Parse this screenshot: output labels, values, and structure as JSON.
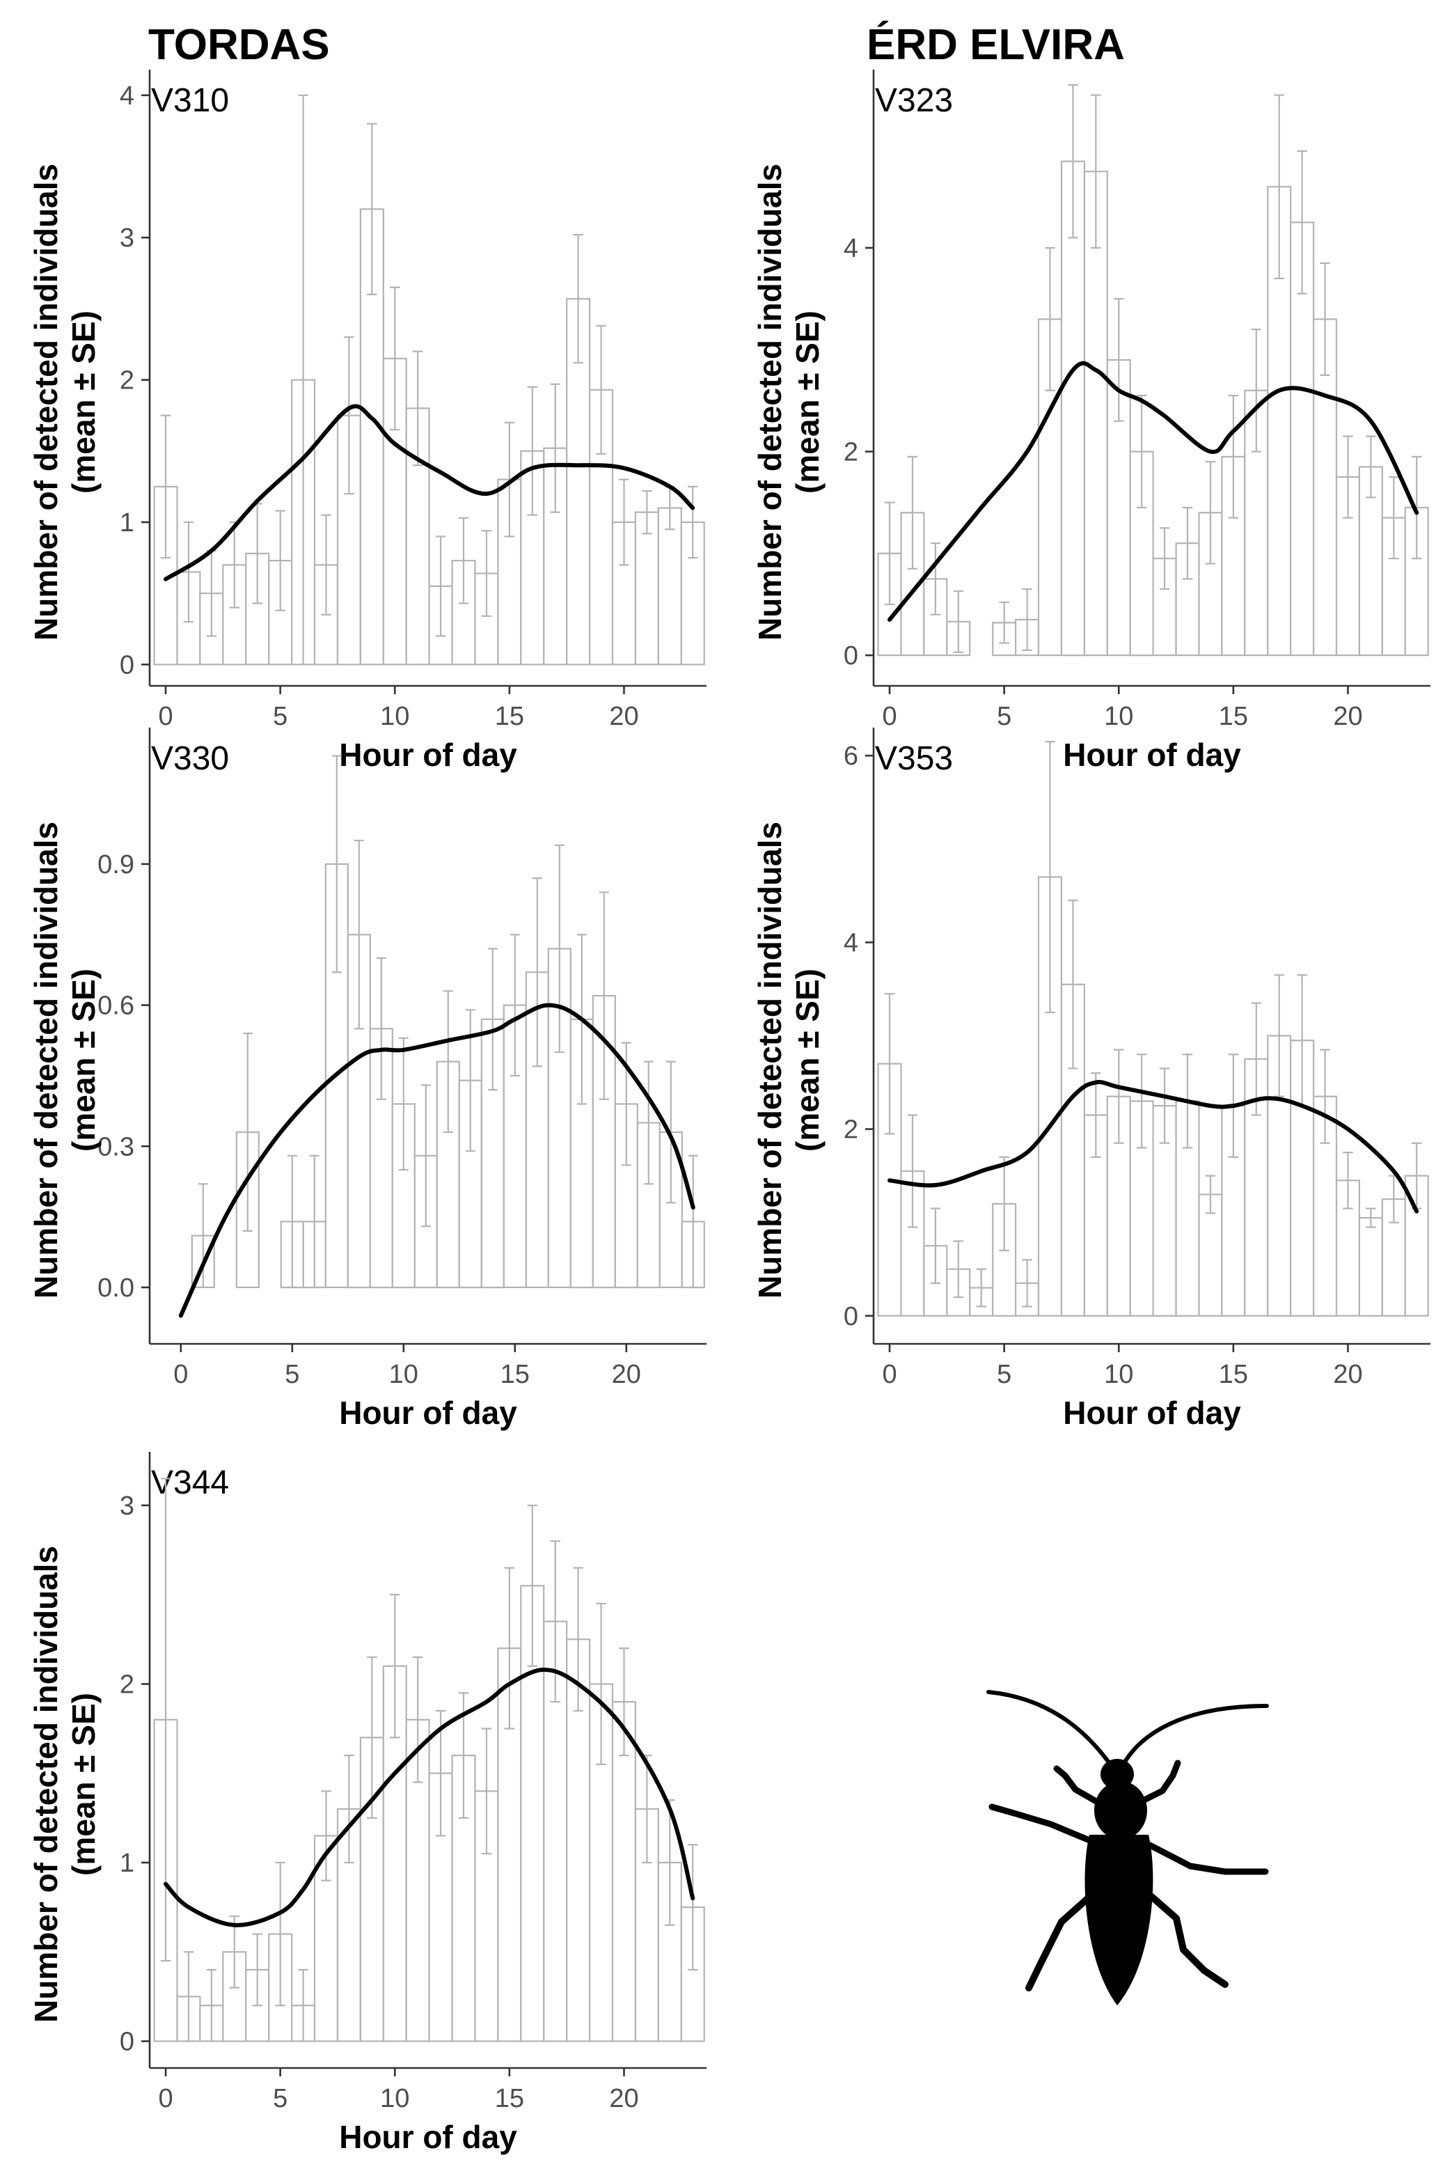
{
  "figure": {
    "site_titles": [
      "TORDAS",
      "ÉRD ELVIRA"
    ]
  },
  "chart_data": [
    {
      "type": "bar",
      "site": "TORDAS",
      "title": "V310",
      "xlabel": "Hour of day",
      "ylabel": [
        "Number of detected individuals",
        "(mean ± SE)"
      ],
      "x": [
        0,
        1,
        2,
        3,
        4,
        5,
        6,
        7,
        8,
        9,
        10,
        11,
        12,
        13,
        14,
        15,
        16,
        17,
        18,
        19,
        20,
        21,
        22,
        23
      ],
      "values": [
        1.25,
        0.65,
        0.5,
        0.7,
        0.78,
        0.73,
        2.0,
        0.7,
        1.75,
        3.2,
        2.15,
        1.8,
        0.55,
        0.73,
        0.64,
        1.3,
        1.5,
        1.52,
        2.57,
        1.93,
        1.0,
        1.07,
        1.1,
        1.0
      ],
      "se": [
        0.5,
        0.35,
        0.3,
        0.3,
        0.35,
        0.35,
        2.0,
        0.35,
        0.55,
        0.6,
        0.5,
        0.4,
        0.35,
        0.3,
        0.3,
        0.4,
        0.45,
        0.45,
        0.45,
        0.45,
        0.3,
        0.15,
        0.15,
        0.25
      ],
      "smooth": [
        [
          0,
          0.6
        ],
        [
          2,
          0.8
        ],
        [
          4,
          1.15
        ],
        [
          6,
          1.45
        ],
        [
          8,
          1.8
        ],
        [
          9,
          1.73
        ],
        [
          10,
          1.55
        ],
        [
          12,
          1.35
        ],
        [
          14,
          1.2
        ],
        [
          16,
          1.38
        ],
        [
          18,
          1.4
        ],
        [
          20,
          1.38
        ],
        [
          22,
          1.25
        ],
        [
          23,
          1.1
        ]
      ],
      "xlim": [
        -0.7,
        23.6
      ],
      "ylim": [
        -0.15,
        4.18
      ],
      "xticks": [
        0,
        5,
        10,
        15,
        20
      ],
      "yticks": [
        0,
        1,
        2,
        3,
        4
      ],
      "ytick_labels": [
        "0",
        "1",
        "2",
        "3",
        "4"
      ]
    },
    {
      "type": "bar",
      "site": "ÉRD ELVIRA",
      "title": "V323",
      "xlabel": "Hour of day",
      "ylabel": [
        "Number of detected individuals",
        "(mean ± SE)"
      ],
      "x": [
        0,
        1,
        2,
        3,
        4,
        5,
        6,
        7,
        8,
        9,
        10,
        11,
        12,
        13,
        14,
        15,
        16,
        17,
        18,
        19,
        20,
        21,
        22,
        23
      ],
      "values": [
        1.0,
        1.4,
        0.75,
        0.33,
        0.0,
        0.32,
        0.35,
        3.3,
        4.85,
        4.75,
        2.9,
        2.0,
        0.95,
        1.1,
        1.4,
        1.95,
        2.6,
        4.6,
        4.25,
        3.3,
        1.75,
        1.85,
        1.35,
        1.45
      ],
      "se": [
        0.5,
        0.55,
        0.35,
        0.3,
        0.0,
        0.2,
        0.3,
        0.7,
        0.75,
        0.75,
        0.6,
        0.55,
        0.3,
        0.35,
        0.5,
        0.6,
        0.6,
        0.9,
        0.7,
        0.55,
        0.4,
        0.3,
        0.4,
        0.5
      ],
      "smooth": [
        [
          0,
          0.35
        ],
        [
          2,
          0.9
        ],
        [
          4,
          1.45
        ],
        [
          6,
          2.0
        ],
        [
          8,
          2.8
        ],
        [
          9,
          2.8
        ],
        [
          10,
          2.6
        ],
        [
          11,
          2.5
        ],
        [
          12,
          2.35
        ],
        [
          14,
          2.0
        ],
        [
          15,
          2.2
        ],
        [
          17,
          2.6
        ],
        [
          19,
          2.55
        ],
        [
          21,
          2.3
        ],
        [
          23,
          1.4
        ]
      ],
      "xlim": [
        -0.7,
        23.6
      ],
      "ylim": [
        -0.3,
        5.75
      ],
      "xticks": [
        0,
        5,
        10,
        15,
        20
      ],
      "yticks": [
        0,
        2,
        4
      ],
      "ytick_labels": [
        "0",
        "2",
        "4"
      ]
    },
    {
      "type": "bar",
      "site": "TORDAS",
      "title": "V330",
      "xlabel": "Hour of day",
      "ylabel": [
        "Number of detected individuals",
        "(mean ± SE)"
      ],
      "x": [
        0,
        1,
        2,
        3,
        4,
        5,
        6,
        7,
        8,
        9,
        10,
        11,
        12,
        13,
        14,
        15,
        16,
        17,
        18,
        19,
        20,
        21,
        22,
        23
      ],
      "values": [
        0.0,
        0.11,
        0.0,
        0.33,
        0.0,
        0.14,
        0.14,
        0.9,
        0.75,
        0.55,
        0.39,
        0.28,
        0.48,
        0.44,
        0.57,
        0.6,
        0.67,
        0.72,
        0.57,
        0.62,
        0.39,
        0.35,
        0.33,
        0.14
      ],
      "se": [
        0.0,
        0.11,
        0.0,
        0.21,
        0.0,
        0.14,
        0.14,
        0.23,
        0.2,
        0.15,
        0.14,
        0.15,
        0.15,
        0.15,
        0.15,
        0.15,
        0.2,
        0.22,
        0.18,
        0.22,
        0.13,
        0.13,
        0.15,
        0.14
      ],
      "smooth": [
        [
          0,
          -0.06
        ],
        [
          2,
          0.15
        ],
        [
          4,
          0.3
        ],
        [
          6,
          0.41
        ],
        [
          8,
          0.49
        ],
        [
          9,
          0.505
        ],
        [
          10,
          0.505
        ],
        [
          12,
          0.525
        ],
        [
          14,
          0.545
        ],
        [
          15,
          0.57
        ],
        [
          16.5,
          0.6
        ],
        [
          18,
          0.57
        ],
        [
          20,
          0.47
        ],
        [
          22,
          0.32
        ],
        [
          23,
          0.17
        ]
      ],
      "xlim": [
        -1.4,
        23.6
      ],
      "ylim": [
        -0.12,
        1.19
      ],
      "xticks": [
        0,
        5,
        10,
        15,
        20
      ],
      "yticks": [
        0,
        0.3,
        0.6,
        0.9
      ],
      "ytick_labels": [
        "0.0",
        "0.3",
        "0.6",
        "0.9"
      ]
    },
    {
      "type": "bar",
      "site": "ÉRD ELVIRA",
      "title": "V353",
      "xlabel": "Hour of day",
      "ylabel": [
        "Number of detected individuals",
        "(mean ± SE)"
      ],
      "x": [
        0,
        1,
        2,
        3,
        4,
        5,
        6,
        7,
        8,
        9,
        10,
        11,
        12,
        13,
        14,
        15,
        16,
        17,
        18,
        19,
        20,
        21,
        22,
        23
      ],
      "values": [
        2.7,
        1.55,
        0.75,
        0.5,
        0.3,
        1.2,
        0.35,
        4.7,
        3.55,
        2.15,
        2.35,
        2.3,
        2.25,
        2.3,
        1.3,
        2.25,
        2.75,
        3.0,
        2.95,
        2.35,
        1.45,
        1.05,
        1.25,
        1.5
      ],
      "se": [
        0.75,
        0.6,
        0.4,
        0.3,
        0.2,
        0.5,
        0.25,
        1.45,
        0.9,
        0.45,
        0.5,
        0.5,
        0.4,
        0.5,
        0.2,
        0.55,
        0.6,
        0.65,
        0.7,
        0.5,
        0.3,
        0.1,
        0.25,
        0.35
      ],
      "smooth": [
        [
          0,
          1.45
        ],
        [
          2,
          1.4
        ],
        [
          4,
          1.55
        ],
        [
          6,
          1.75
        ],
        [
          8,
          2.35
        ],
        [
          9,
          2.5
        ],
        [
          10,
          2.45
        ],
        [
          12,
          2.35
        ],
        [
          14,
          2.25
        ],
        [
          15,
          2.25
        ],
        [
          16.5,
          2.33
        ],
        [
          18,
          2.25
        ],
        [
          20,
          2.0
        ],
        [
          22,
          1.55
        ],
        [
          23,
          1.12
        ]
      ],
      "xlim": [
        -0.7,
        23.6
      ],
      "ylim": [
        -0.3,
        6.3
      ],
      "xticks": [
        0,
        5,
        10,
        15,
        20
      ],
      "yticks": [
        0,
        2,
        4,
        6
      ],
      "ytick_labels": [
        "0",
        "2",
        "4",
        "6"
      ]
    },
    {
      "type": "bar",
      "site": "TORDAS",
      "title": "V344",
      "xlabel": "Hour of day",
      "ylabel": [
        "Number of detected individuals",
        "(mean ± SE)"
      ],
      "x": [
        0,
        1,
        2,
        3,
        4,
        5,
        6,
        7,
        8,
        9,
        10,
        11,
        12,
        13,
        14,
        15,
        16,
        17,
        18,
        19,
        20,
        21,
        22,
        23
      ],
      "values": [
        1.8,
        0.25,
        0.2,
        0.5,
        0.4,
        0.6,
        0.2,
        1.15,
        1.3,
        1.7,
        2.1,
        1.8,
        1.5,
        1.6,
        1.4,
        2.2,
        2.55,
        2.35,
        2.25,
        2.0,
        1.9,
        1.3,
        1.0,
        0.75
      ],
      "se": [
        1.35,
        0.25,
        0.2,
        0.2,
        0.2,
        0.4,
        0.2,
        0.25,
        0.3,
        0.45,
        0.4,
        0.35,
        0.35,
        0.35,
        0.35,
        0.45,
        0.45,
        0.45,
        0.4,
        0.45,
        0.3,
        0.3,
        0.35,
        0.35
      ],
      "smooth": [
        [
          0,
          0.88
        ],
        [
          1,
          0.75
        ],
        [
          3,
          0.65
        ],
        [
          5,
          0.72
        ],
        [
          6,
          0.85
        ],
        [
          7,
          1.05
        ],
        [
          9,
          1.35
        ],
        [
          10,
          1.5
        ],
        [
          12,
          1.75
        ],
        [
          14,
          1.9
        ],
        [
          15,
          2.0
        ],
        [
          16.5,
          2.08
        ],
        [
          18,
          2.0
        ],
        [
          20,
          1.75
        ],
        [
          22,
          1.3
        ],
        [
          23,
          0.8
        ]
      ],
      "xlim": [
        -0.7,
        23.6
      ],
      "ylim": [
        -0.15,
        3.3
      ],
      "xticks": [
        0,
        5,
        10,
        15,
        20
      ],
      "yticks": [
        0,
        1,
        2,
        3
      ],
      "ytick_labels": [
        "0",
        "1",
        "2",
        "3"
      ]
    }
  ]
}
